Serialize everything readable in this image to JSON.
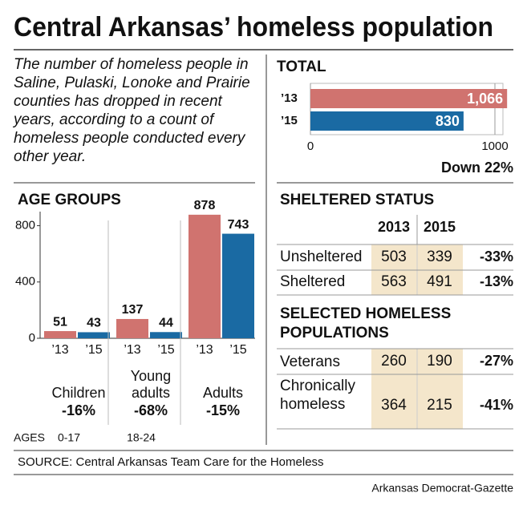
{
  "title": "Central Arkansas’ homeless population",
  "intro": "The number of homeless people in Saline, Pulaski, Lonoke and Prairie counties has dropped in recent years, according to a count of homeless people conducted every other year.",
  "chart_data": [
    {
      "type": "hbar",
      "title": "TOTAL",
      "categories": [
        "’13",
        "’15"
      ],
      "values": [
        1066,
        830
      ],
      "value_labels": [
        "1,066",
        "830"
      ],
      "colors": [
        "#d0736f",
        "#1a6aa3"
      ],
      "xlim": [
        0,
        1100
      ],
      "xticks": [
        0,
        1000
      ],
      "annotation": "Down 22%"
    },
    {
      "type": "bar",
      "title": "AGE GROUPS",
      "categories": [
        "Children",
        "Young adults",
        "Adults"
      ],
      "series": [
        {
          "name": "’13",
          "color": "#d0736f",
          "values": [
            51,
            137,
            878
          ]
        },
        {
          "name": "’15",
          "color": "#1a6aa3",
          "values": [
            43,
            44,
            743
          ]
        }
      ],
      "changes": [
        "-16%",
        "-68%",
        "-15%"
      ],
      "ages_label": "AGES",
      "ages": [
        "0-17",
        "18-24",
        null
      ],
      "ylim": [
        0,
        900
      ],
      "yticks": [
        0,
        400,
        800
      ]
    }
  ],
  "sheltered": {
    "title": "SHELTERED STATUS",
    "columns": [
      "2013",
      "2015"
    ],
    "rows": [
      [
        "Unsheltered",
        503,
        339,
        "-33%"
      ],
      [
        "Sheltered",
        563,
        491,
        "-13%"
      ]
    ]
  },
  "selected": {
    "title": "SELECTED HOMELESS POPULATIONS",
    "rows": [
      [
        "Veterans",
        260,
        190,
        "-27%"
      ],
      [
        "Chronically homeless",
        364,
        215,
        "-41%"
      ]
    ]
  },
  "source": "SOURCE: Central Arkansas Team Care for the Homeless",
  "credit": "Arkansas Democrat-Gazette"
}
